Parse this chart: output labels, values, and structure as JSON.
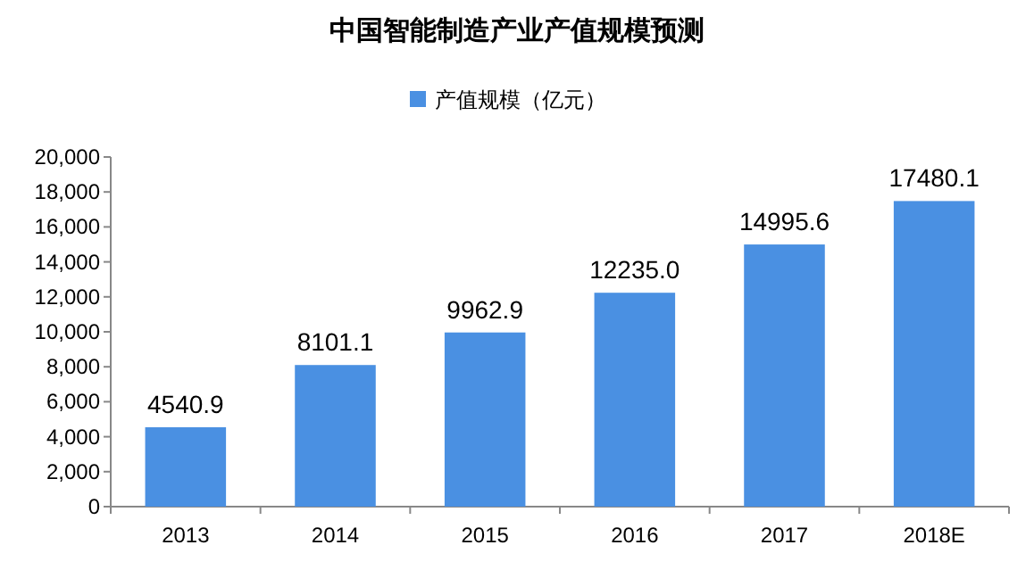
{
  "chart_data": {
    "type": "bar",
    "title": "中国智能制造产业产值规模预测",
    "categories": [
      "2013",
      "2014",
      "2015",
      "2016",
      "2017",
      "2018E"
    ],
    "series": [
      {
        "name": "产值规模（亿元）",
        "color": "#4a90e2",
        "values": [
          4540.9,
          8101.1,
          9962.9,
          12235.0,
          14995.6,
          17480.1
        ]
      }
    ],
    "value_labels": [
      "4540.9",
      "8101.1",
      "9962.9",
      "12235.0",
      "14995.6",
      "17480.1"
    ],
    "ylim": [
      0,
      20000
    ],
    "yticks": [
      0,
      {
        "value": 2000,
        "label": "2,000"
      },
      {
        "value": 4000,
        "label": "4,000"
      },
      {
        "value": 6000,
        "label": "6,000"
      },
      {
        "value": 8000,
        "label": "8,000"
      },
      {
        "value": 10000,
        "label": "10,000"
      },
      {
        "value": 12000,
        "label": "12,000"
      },
      {
        "value": 14000,
        "label": "14,000"
      },
      {
        "value": 16000,
        "label": "16,000"
      },
      {
        "value": 18000,
        "label": "18,000"
      },
      {
        "value": 20000,
        "label": "20,000"
      }
    ],
    "legend": "top",
    "grid": false
  }
}
